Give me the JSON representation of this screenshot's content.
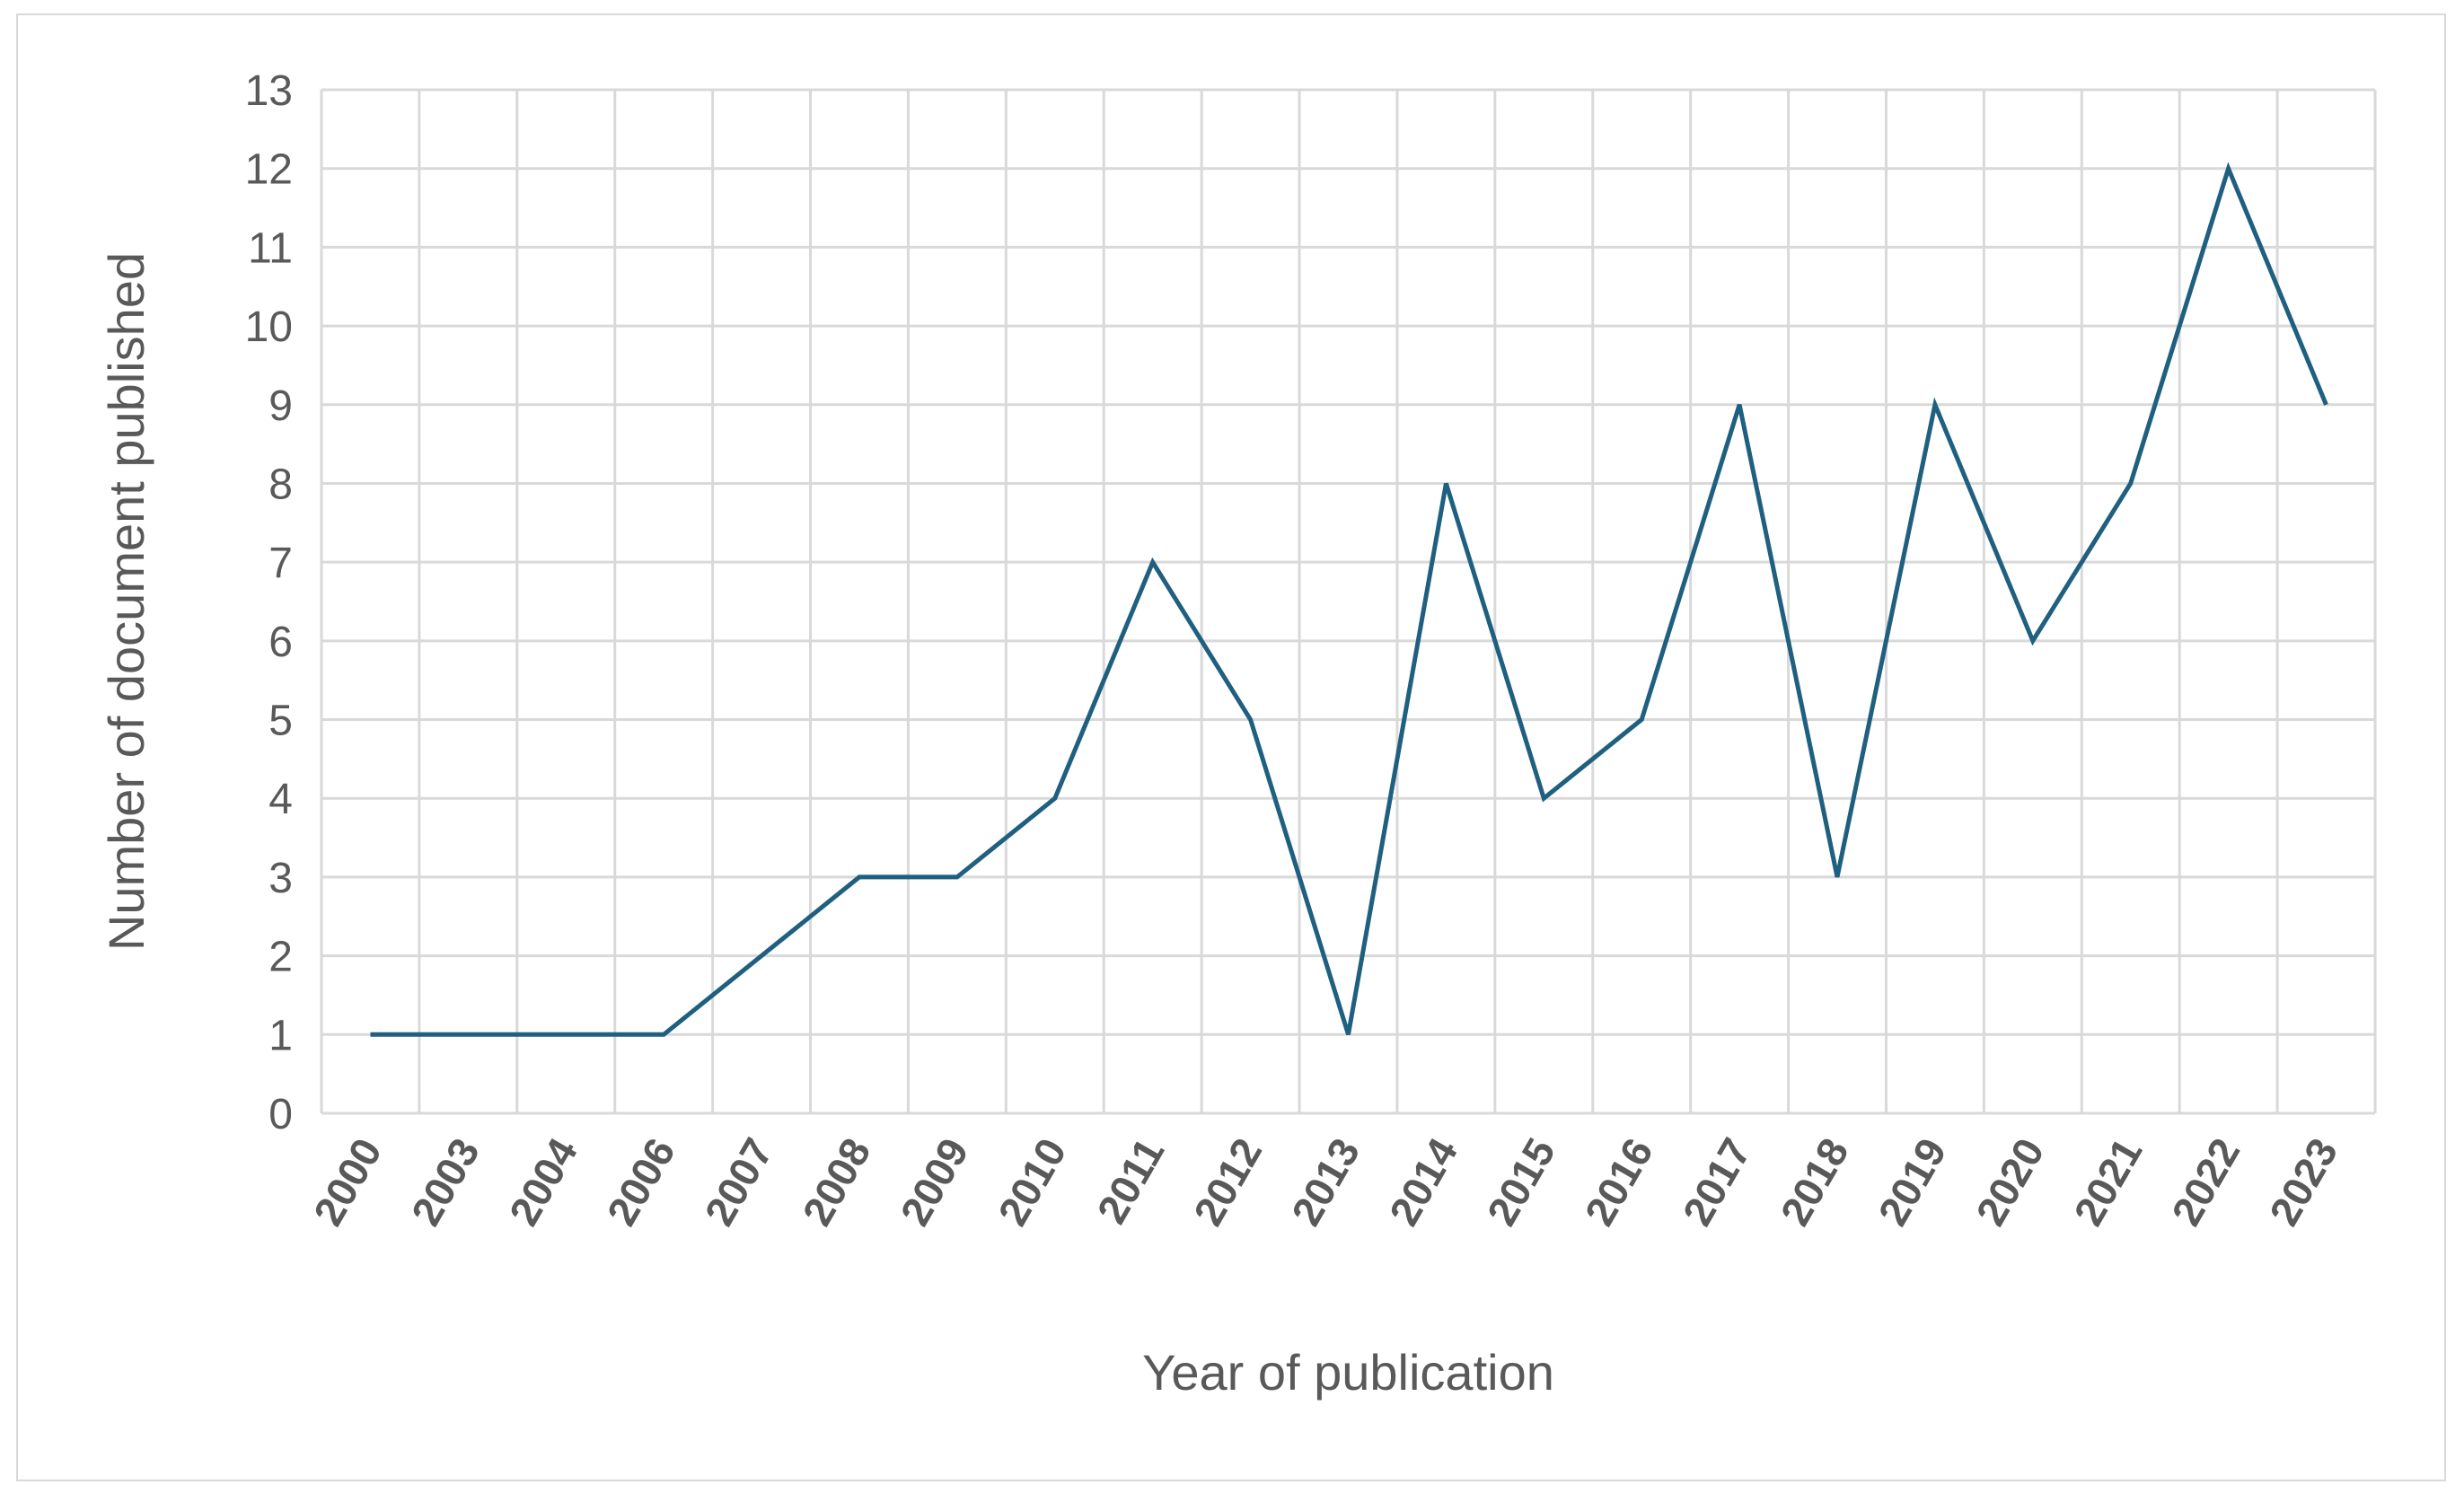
{
  "colors": {
    "line": "#1f5f7f",
    "grid": "#d9d9d9",
    "text": "#595959",
    "frame": "#d9d9d9"
  },
  "chart_data": {
    "type": "line",
    "title": "",
    "xlabel": "Year of publication",
    "ylabel": "Number of document published",
    "categories": [
      "2000",
      "2003",
      "2004",
      "2006",
      "2007",
      "2008",
      "2009",
      "2010",
      "2011",
      "2012",
      "2013",
      "2014",
      "2015",
      "2016",
      "2017",
      "2018",
      "2019",
      "2020",
      "2021",
      "2022",
      "2023"
    ],
    "series": [
      {
        "values": [
          1,
          1,
          1,
          1,
          2,
          3,
          3,
          4,
          7,
          5,
          1,
          8,
          4,
          5,
          9,
          3,
          9,
          6,
          8,
          12,
          9
        ]
      }
    ],
    "ylim": [
      0,
      13
    ],
    "yticks": [
      0,
      1,
      2,
      3,
      4,
      5,
      6,
      7,
      8,
      9,
      10,
      11,
      12,
      13
    ],
    "grid": true,
    "legend": "none"
  }
}
